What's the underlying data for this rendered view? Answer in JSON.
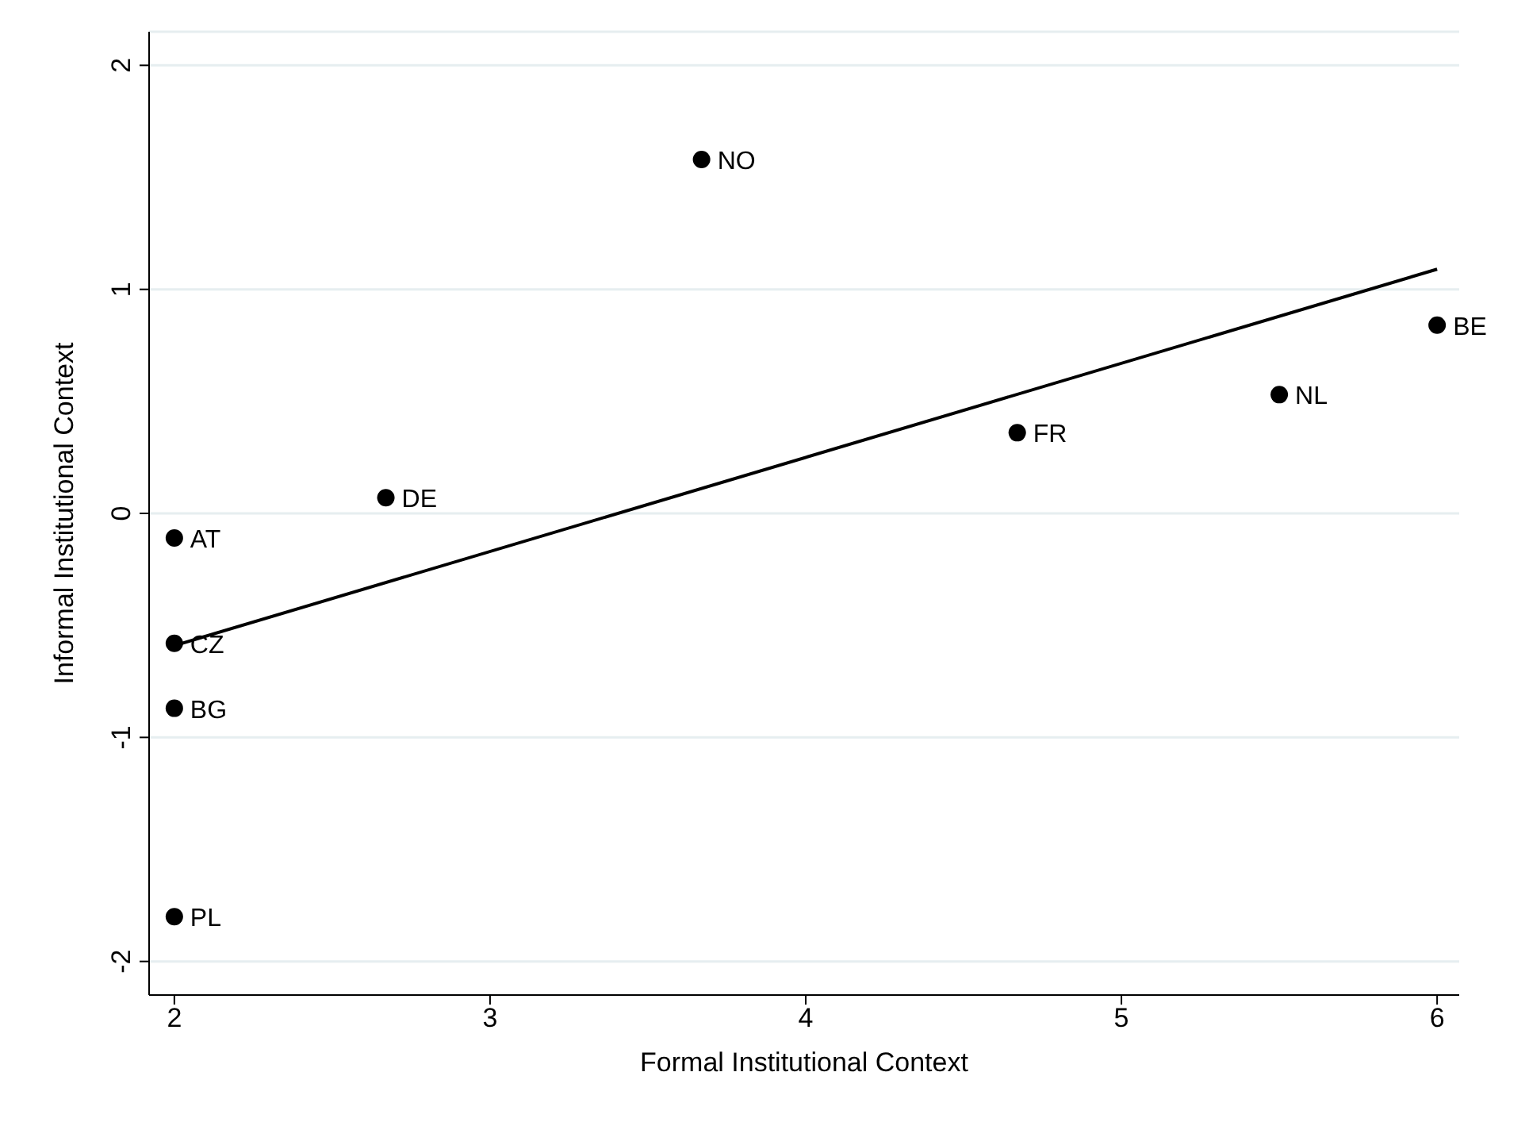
{
  "chart_data": {
    "type": "scatter",
    "xlabel": "Formal Institutional Context",
    "ylabel": "Informal Institutional Context",
    "xlim": [
      1.92,
      6.07
    ],
    "ylim": [
      -2.15,
      2.15
    ],
    "xticks": [
      2,
      3,
      4,
      5,
      6
    ],
    "yticks": [
      -2,
      -1,
      0,
      1,
      2
    ],
    "grid": "y",
    "marker": "circle",
    "series": [
      {
        "color": "#000000",
        "x": [
          3.67,
          6,
          5.5,
          4.67,
          2.67,
          2,
          2,
          2,
          2
        ],
        "values": [
          1.58,
          0.84,
          0.53,
          0.36,
          0.07,
          -0.11,
          -0.58,
          -0.87,
          -1.8
        ]
      },
      {
        "type": "line",
        "color": "#000000",
        "marker": "none",
        "x": [
          2,
          6
        ],
        "values": [
          -0.59,
          1.09
        ]
      }
    ],
    "annotations": [
      {
        "text": "NO",
        "x": 3.67,
        "y": 1.58
      },
      {
        "text": "BE",
        "x": 6,
        "y": 0.84
      },
      {
        "text": "NL",
        "x": 5.5,
        "y": 0.53
      },
      {
        "text": "FR",
        "x": 4.67,
        "y": 0.36
      },
      {
        "text": "DE",
        "x": 2.67,
        "y": 0.07
      },
      {
        "text": "AT",
        "x": 2,
        "y": -0.11
      },
      {
        "text": "CZ",
        "x": 2,
        "y": -0.58
      },
      {
        "text": "BG",
        "x": 2,
        "y": -0.87
      },
      {
        "text": "PL",
        "x": 2,
        "y": -1.8
      }
    ]
  }
}
